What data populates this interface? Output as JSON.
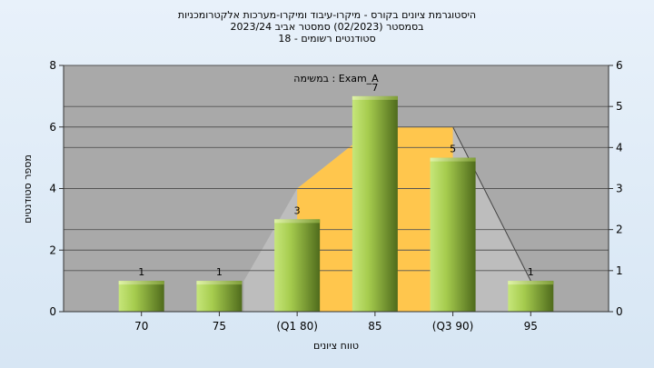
{
  "chart_data": {
    "type": "bar",
    "title_lines": [
      "היסטוגרמת ציונים בקורס - מיקרו-עיבוד ומיקרו-מערכות אלקטרומכניות",
      "בסמסטר  (02/2023)  סמסטר אביב 2023/24",
      "סטודנטים רשומים - 18"
    ],
    "annotation": "במשימה : Exam_A",
    "xlabel": "טווח ציונים",
    "ylabel": "מספר סטודנטים",
    "categories": [
      "70",
      "75",
      "(Q1 80)",
      "85",
      "(Q3 90)",
      "95"
    ],
    "values": [
      1,
      1,
      3,
      7,
      5,
      1
    ],
    "data_labels": [
      "1",
      "1",
      "3",
      "7",
      "5",
      "1"
    ],
    "ylim_left": [
      0,
      8
    ],
    "yticks_left": [
      "0",
      "2",
      "4",
      "6",
      "8"
    ],
    "ylim_right": [
      0,
      6
    ],
    "yticks_right": [
      "0",
      "1",
      "2",
      "3",
      "4",
      "5",
      "6"
    ],
    "grid": true,
    "colors": {
      "bar_light": "#c6e67a",
      "bar_dark": "#4f6b1c",
      "iqr_fill": "#ffc64d",
      "range_fill": "#bdbdbd",
      "plot_bg": "#a9a9a9"
    }
  }
}
